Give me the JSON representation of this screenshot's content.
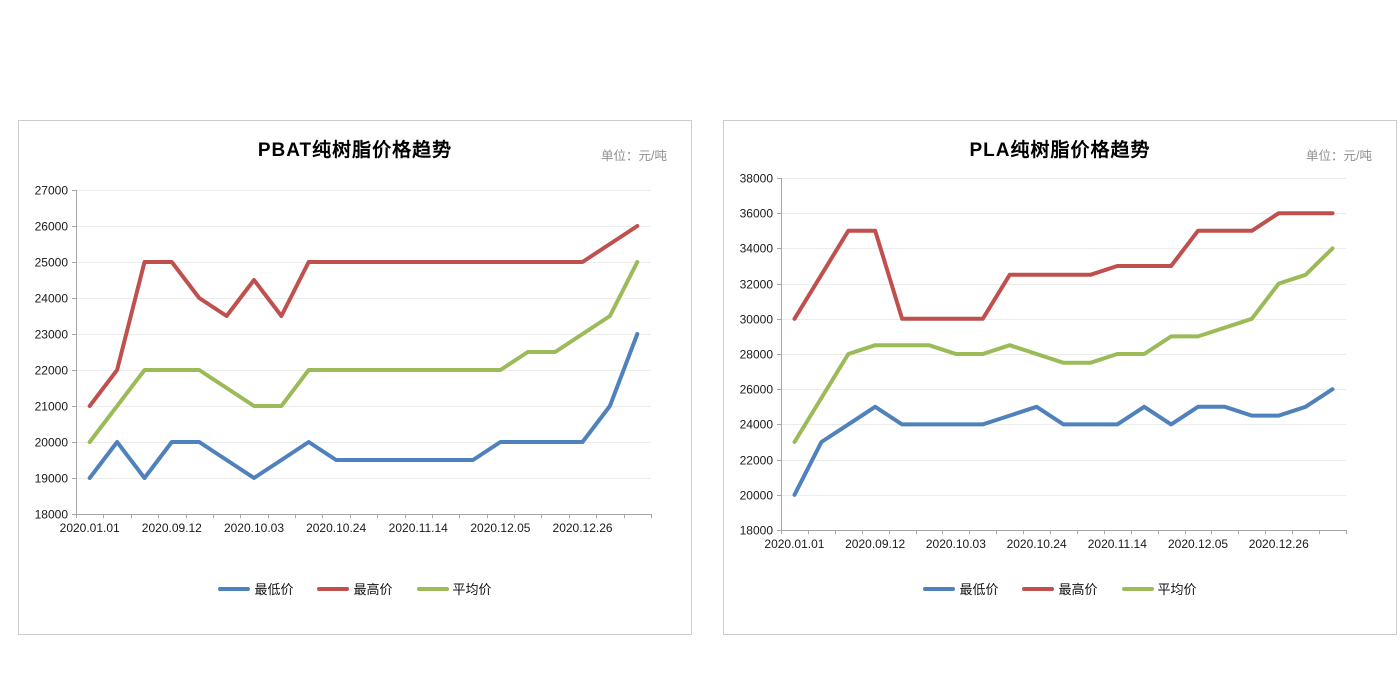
{
  "charts_page": {
    "background": "#ffffff"
  },
  "chart_data": [
    {
      "type": "line",
      "title": "PBAT纯树脂价格趋势",
      "unit": "单位：元/吨",
      "ylim": [
        18000,
        27000
      ],
      "y_step": 1000,
      "grid": "horizontal",
      "legend_position": "bottom",
      "x_labels": [
        "2020.01.01",
        "2020.09.12",
        "2020.10.03",
        "2020.10.24",
        "2020.11.14",
        "2020.12.05",
        "2020.12.26"
      ],
      "x_label_indices": [
        0,
        3,
        6,
        9,
        12,
        15,
        18
      ],
      "series": [
        {
          "name": "最低价",
          "color": "#4F81BD",
          "values": [
            19000,
            20000,
            19000,
            20000,
            20000,
            19500,
            19000,
            19500,
            20000,
            19500,
            19500,
            19500,
            19500,
            19500,
            19500,
            20000,
            20000,
            20000,
            20000,
            21000,
            23000
          ]
        },
        {
          "name": "最高价",
          "color": "#C0504D",
          "values": [
            21000,
            22000,
            25000,
            25000,
            24000,
            23500,
            24500,
            23500,
            25000,
            25000,
            25000,
            25000,
            25000,
            25000,
            25000,
            25000,
            25000,
            25000,
            25000,
            25500,
            26000
          ]
        },
        {
          "name": "平均价",
          "color": "#9BBB59",
          "values": [
            20000,
            21000,
            22000,
            22000,
            22000,
            21500,
            21000,
            21000,
            22000,
            22000,
            22000,
            22000,
            22000,
            22000,
            22000,
            22000,
            22500,
            22500,
            23000,
            23500,
            25000
          ]
        }
      ]
    },
    {
      "type": "line",
      "title": "PLA纯树脂价格趋势",
      "unit": "单位：元/吨",
      "ylim": [
        18000,
        38000
      ],
      "y_step": 2000,
      "grid": "horizontal",
      "legend_position": "bottom",
      "x_labels": [
        "2020.01.01",
        "2020.09.12",
        "2020.10.03",
        "2020.10.24",
        "2020.11.14",
        "2020.12.05",
        "2020.12.26"
      ],
      "x_label_indices": [
        0,
        3,
        6,
        9,
        12,
        15,
        18
      ],
      "series": [
        {
          "name": "最低价",
          "color": "#4F81BD",
          "values": [
            20000,
            23000,
            24000,
            25000,
            24000,
            24000,
            24000,
            24000,
            24500,
            25000,
            24000,
            24000,
            24000,
            25000,
            24000,
            25000,
            25000,
            24500,
            24500,
            25000,
            26000
          ]
        },
        {
          "name": "最高价",
          "color": "#C0504D",
          "values": [
            30000,
            32500,
            35000,
            35000,
            30000,
            30000,
            30000,
            30000,
            32500,
            32500,
            32500,
            32500,
            33000,
            33000,
            33000,
            35000,
            35000,
            35000,
            36000,
            36000,
            36000
          ]
        },
        {
          "name": "平均价",
          "color": "#9BBB59",
          "values": [
            23000,
            25500,
            28000,
            28500,
            28500,
            28500,
            28000,
            28000,
            28500,
            28000,
            27500,
            27500,
            28000,
            28000,
            29000,
            29000,
            29500,
            30000,
            32000,
            32500,
            34000
          ]
        }
      ]
    }
  ]
}
